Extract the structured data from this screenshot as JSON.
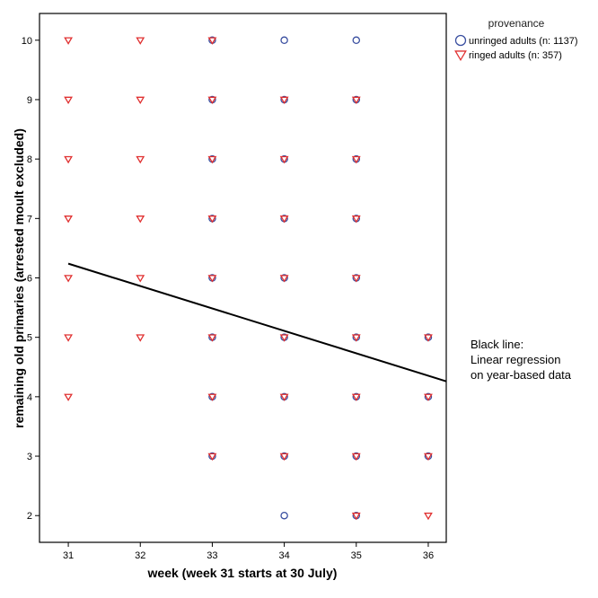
{
  "chart_data": {
    "type": "scatter",
    "xlabel": "week (week 31 starts at 30 July)",
    "ylabel": "remaining old primaries (arrested moult excluded)",
    "x_ticks": [
      31,
      32,
      33,
      34,
      35,
      36
    ],
    "y_ticks": [
      2,
      3,
      4,
      5,
      6,
      7,
      8,
      9,
      10
    ],
    "xlim": [
      30.6,
      36.25
    ],
    "ylim": [
      1.55,
      10.45
    ],
    "grid": false,
    "legend": {
      "title": "provenance",
      "position": "top-right"
    },
    "series": [
      {
        "name": "unringed adults (n: 1137)",
        "marker": "circle",
        "color": "#3a4fa0",
        "points": [
          [
            33,
            10
          ],
          [
            33,
            9
          ],
          [
            33,
            8
          ],
          [
            33,
            7
          ],
          [
            33,
            6
          ],
          [
            33,
            5
          ],
          [
            33,
            4
          ],
          [
            33,
            3
          ],
          [
            34,
            10
          ],
          [
            34,
            9
          ],
          [
            34,
            8
          ],
          [
            34,
            7
          ],
          [
            34,
            6
          ],
          [
            34,
            5
          ],
          [
            34,
            4
          ],
          [
            34,
            3
          ],
          [
            34,
            2
          ],
          [
            35,
            10
          ],
          [
            35,
            9
          ],
          [
            35,
            8
          ],
          [
            35,
            7
          ],
          [
            35,
            6
          ],
          [
            35,
            5
          ],
          [
            35,
            4
          ],
          [
            35,
            3
          ],
          [
            35,
            2
          ],
          [
            36,
            5
          ],
          [
            36,
            4
          ],
          [
            36,
            3
          ]
        ]
      },
      {
        "name": "ringed adults (n: 357)",
        "marker": "triangle-down",
        "color": "#e03030",
        "points": [
          [
            31,
            10
          ],
          [
            31,
            9
          ],
          [
            31,
            8
          ],
          [
            31,
            7
          ],
          [
            31,
            6
          ],
          [
            31,
            5
          ],
          [
            31,
            4
          ],
          [
            32,
            10
          ],
          [
            32,
            9
          ],
          [
            32,
            8
          ],
          [
            32,
            7
          ],
          [
            32,
            6
          ],
          [
            32,
            5
          ],
          [
            33,
            10
          ],
          [
            33,
            9
          ],
          [
            33,
            8
          ],
          [
            33,
            7
          ],
          [
            33,
            6
          ],
          [
            33,
            5
          ],
          [
            33,
            4
          ],
          [
            33,
            3
          ],
          [
            34,
            9
          ],
          [
            34,
            8
          ],
          [
            34,
            7
          ],
          [
            34,
            6
          ],
          [
            34,
            5
          ],
          [
            34,
            4
          ],
          [
            34,
            3
          ],
          [
            35,
            9
          ],
          [
            35,
            8
          ],
          [
            35,
            7
          ],
          [
            35,
            6
          ],
          [
            35,
            5
          ],
          [
            35,
            4
          ],
          [
            35,
            3
          ],
          [
            35,
            2
          ],
          [
            36,
            5
          ],
          [
            36,
            4
          ],
          [
            36,
            3
          ],
          [
            36,
            2
          ]
        ]
      }
    ],
    "regression_line": {
      "color": "#000000",
      "x": [
        31,
        36.25
      ],
      "y": [
        6.24,
        4.26
      ]
    },
    "annotation": {
      "lines": [
        "Black line:",
        "Linear regression",
        "on year-based data"
      ]
    }
  }
}
